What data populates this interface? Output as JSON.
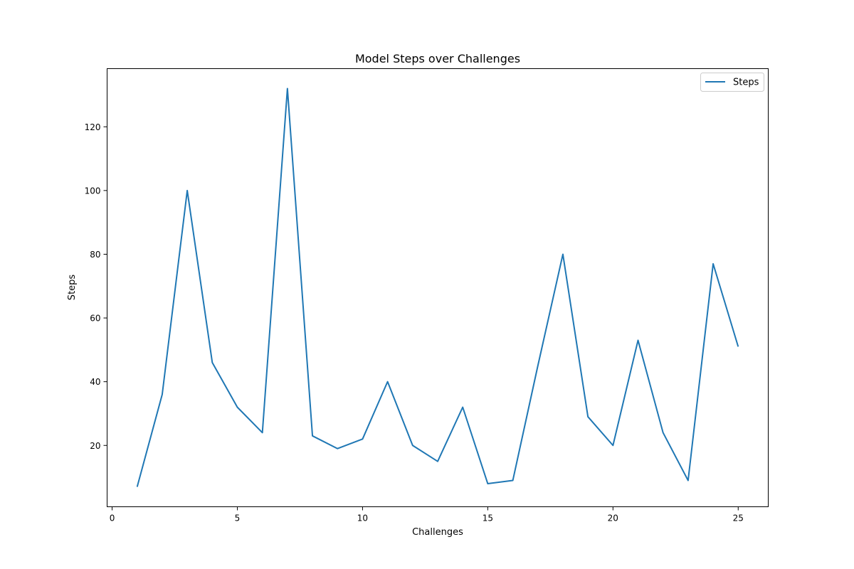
{
  "chart_data": {
    "type": "line",
    "title": "Model Steps over Challenges",
    "xlabel": "Challenges",
    "ylabel": "Steps",
    "xlim": [
      -0.2,
      26.2
    ],
    "ylim": [
      0.75,
      138.25
    ],
    "xticks": [
      0,
      5,
      10,
      15,
      20,
      25
    ],
    "yticks": [
      20,
      40,
      60,
      80,
      100,
      120
    ],
    "grid": false,
    "legend_position": "top-right",
    "series": [
      {
        "name": "Steps",
        "color": "#1f77b4",
        "x": [
          1,
          2,
          3,
          4,
          5,
          6,
          7,
          8,
          9,
          10,
          11,
          12,
          13,
          14,
          15,
          16,
          17,
          18,
          19,
          20,
          21,
          22,
          23,
          24,
          25
        ],
        "values": [
          7,
          36,
          100,
          46,
          32,
          24,
          132,
          23,
          19,
          22,
          40,
          20,
          15,
          32,
          8,
          9,
          45,
          80,
          29,
          20,
          53,
          24,
          9,
          77,
          51
        ]
      }
    ]
  }
}
